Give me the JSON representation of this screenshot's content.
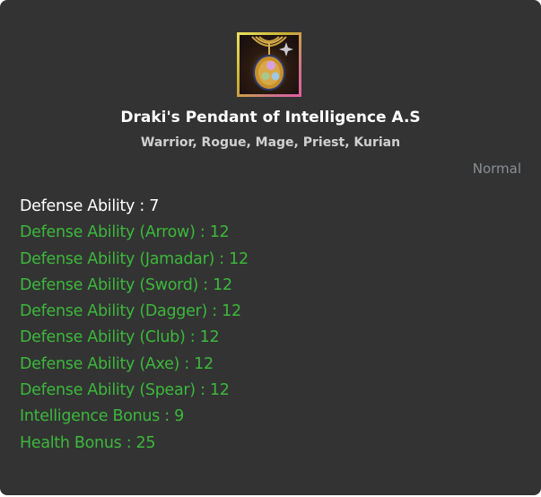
{
  "item": {
    "name": "Draki's Pendant of Intelligence A.S",
    "classes": "Warrior, Rogue, Mage, Priest, Kurian",
    "grade": "Normal",
    "icon": "pendant-icon"
  },
  "colors": {
    "base_stat": "#ffffff",
    "bonus_stat": "#3cb83c",
    "grade": "#8a8f96",
    "background": "#333333"
  },
  "stats": [
    {
      "text": "Defense Ability : 7",
      "type": "base"
    },
    {
      "text": "Defense Ability (Arrow) : 12",
      "type": "bonus"
    },
    {
      "text": "Defense Ability (Jamadar) : 12",
      "type": "bonus"
    },
    {
      "text": "Defense Ability (Sword) : 12",
      "type": "bonus"
    },
    {
      "text": "Defense Ability (Dagger) : 12",
      "type": "bonus"
    },
    {
      "text": "Defense Ability (Club) : 12",
      "type": "bonus"
    },
    {
      "text": "Defense Ability (Axe) : 12",
      "type": "bonus"
    },
    {
      "text": "Defense Ability (Spear) : 12",
      "type": "bonus"
    },
    {
      "text": "Intelligence Bonus : 9",
      "type": "bonus"
    },
    {
      "text": "Health Bonus : 25",
      "type": "bonus"
    }
  ]
}
